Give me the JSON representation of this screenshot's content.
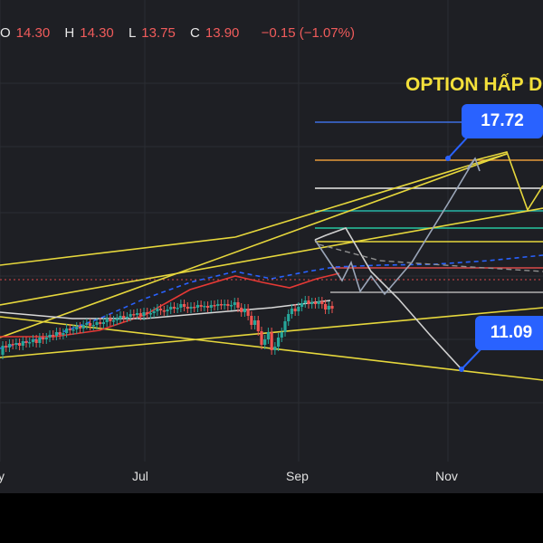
{
  "ohlc": {
    "o_label": "O",
    "o_value": "14.30",
    "h_label": "H",
    "h_value": "14.30",
    "l_label": "L",
    "l_value": "13.75",
    "c_label": "C",
    "c_value": "13.90",
    "change": "−0.15 (−1.07%)"
  },
  "annotation": {
    "title": "OPTION HẤP D"
  },
  "targets": {
    "upper": "17.72",
    "lower": "11.09"
  },
  "x_axis": {
    "labels": [
      "y",
      "Jul",
      "Sep",
      "Nov"
    ]
  },
  "colors": {
    "background": "#1e1f24",
    "up": "#26a69a",
    "down": "#ef5350",
    "trend_yellow": "#e6d73c",
    "label_blue": "#2962ff",
    "ma_red": "#e53935",
    "ma_blue": "#2962ff",
    "ma_white": "#d8d8d8",
    "projection": "#9aa5b8"
  },
  "chart_data": {
    "type": "candlestick",
    "title": "",
    "xlabel": "",
    "ylabel": "",
    "x_ticks": [
      "y",
      "Jul",
      "Sep",
      "Nov"
    ],
    "price_levels": [
      17.72,
      11.09
    ],
    "last_bar": {
      "open": 14.3,
      "high": 14.3,
      "low": 13.75,
      "close": 13.9,
      "change": -0.15,
      "change_pct": -1.07
    },
    "grid": true
  }
}
